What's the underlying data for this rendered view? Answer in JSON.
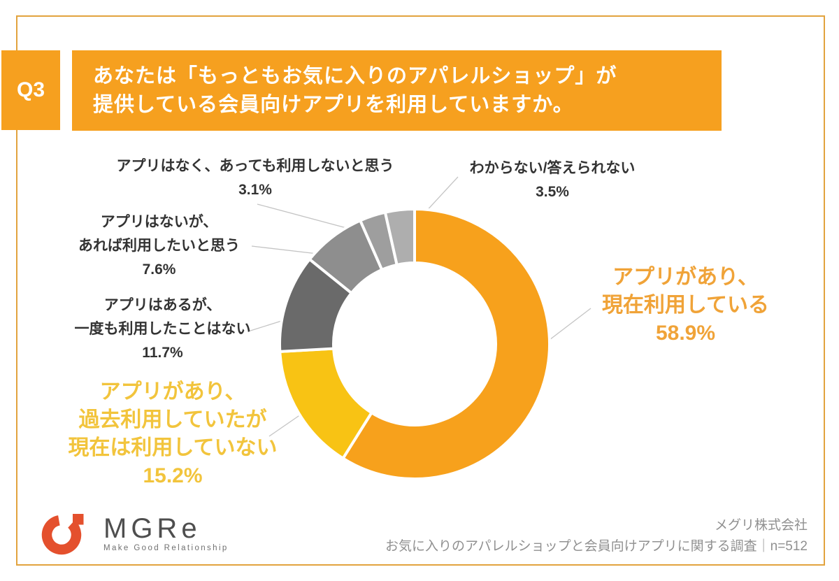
{
  "question": {
    "number": "Q3",
    "line1": "あなたは「もっともお気に入りのアパレルショップ」が",
    "line2": "提供している会員向けアプリを利用していますか。"
  },
  "chart_data": {
    "type": "pie",
    "subtype": "donut",
    "unit": "%",
    "order": "clockwise-from-top",
    "total_label": "n=512",
    "segments": [
      {
        "label": "アプリがあり、現在利用している",
        "value": 58.9,
        "color": "#F7A11C",
        "text_color": "#F0A338",
        "callout_lines": [
          "アプリがあり、",
          "現在利用している",
          "58.9%"
        ]
      },
      {
        "label": "アプリがあり、過去利用していたが現在は利用していない",
        "value": 15.2,
        "color": "#F8C314",
        "text_color": "#F2C43C",
        "callout_lines": [
          "アプリがあり、",
          "過去利用していたが",
          "現在は利用していない",
          "15.2%"
        ]
      },
      {
        "label": "アプリはあるが、一度も利用したことはない",
        "value": 11.7,
        "color": "#6A6A6A",
        "text_color": "#333333",
        "callout_lines": [
          "アプリはあるが、",
          "一度も利用したことはない",
          "11.7%"
        ]
      },
      {
        "label": "アプリはないが、あれば利用したいと思う",
        "value": 7.6,
        "color": "#8E8E8E",
        "text_color": "#333333",
        "callout_lines": [
          "アプリはないが、",
          "あれば利用したいと思う",
          "7.6%"
        ]
      },
      {
        "label": "アプリはなく、あっても利用しないと思う",
        "value": 3.1,
        "color": "#9E9E9E",
        "text_color": "#333333",
        "callout_lines": [
          "アプリはなく、あっても利用しないと思う",
          "3.1%"
        ]
      },
      {
        "label": "わからない/答えられない",
        "value": 3.5,
        "color": "#AEAEAE",
        "text_color": "#333333",
        "callout_lines": [
          "わからない/答えられない",
          "3.5%"
        ]
      }
    ]
  },
  "footer": {
    "logo_text": "MGRe",
    "logo_tagline": "Make Good Relationship",
    "company": "メグリ株式会社",
    "survey": "お気に入りのアパレルショップと会員向けアプリに関する調査｜n=512"
  },
  "colors": {
    "accent_orange": "#F6A01F",
    "accent_yellow": "#F8C314",
    "frame_border": "#E2A33E",
    "logo_red": "#E4502D"
  }
}
